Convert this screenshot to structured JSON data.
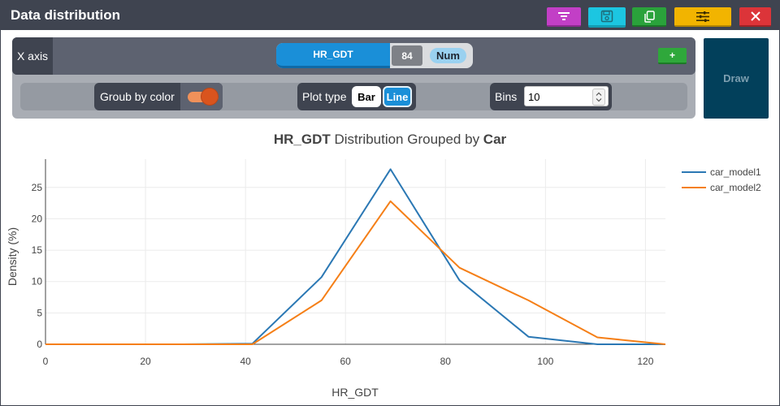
{
  "window": {
    "title": "Data distribution"
  },
  "toolbar": {
    "buttons": [
      {
        "name": "filter-button",
        "icon": "filter-icon",
        "color": "#c23fc6"
      },
      {
        "name": "save-button",
        "icon": "save-icon",
        "color": "#1cc6e1"
      },
      {
        "name": "copy-button",
        "icon": "copy-icon",
        "color": "#2aa23b"
      },
      {
        "name": "settings-button",
        "icon": "sliders-icon",
        "color": "#f2b400"
      },
      {
        "name": "close-button",
        "icon": "close-icon",
        "color": "#dc3439"
      }
    ]
  },
  "controls": {
    "x_axis_label": "X axis",
    "variable": "HR_GDT",
    "count": "84",
    "type_badge": "Num",
    "add_label": "+",
    "group_label": "Groub by color",
    "group_enabled": true,
    "plot_type_label": "Plot type",
    "plot_types": [
      "Bar",
      "Line"
    ],
    "plot_type_selected": "Line",
    "bins_label": "Bins",
    "bins_value": "10",
    "draw_label": "Draw"
  },
  "chart_data": {
    "type": "line",
    "title_var": "HR_GDT",
    "title_mid": " Distribution Grouped by ",
    "title_group": "Car",
    "xlabel": "HR_GDT",
    "ylabel": "Density (%)",
    "xlim": [
      0,
      124
    ],
    "ylim": [
      0,
      29.5
    ],
    "xticks": [
      0,
      20,
      40,
      60,
      80,
      100,
      120
    ],
    "yticks": [
      0,
      5,
      10,
      15,
      20,
      25
    ],
    "grid": true,
    "legend_position": "top-right",
    "series": [
      {
        "name": "car_model1",
        "color": "#2b78b4",
        "x": [
          0,
          13.8,
          27.6,
          41.4,
          55.2,
          69,
          82.8,
          96.6,
          110.4,
          124
        ],
        "y": [
          0,
          0,
          0,
          0.1,
          10.7,
          27.9,
          10.2,
          1.2,
          0,
          0
        ]
      },
      {
        "name": "car_model2",
        "color": "#f57f17",
        "x": [
          0,
          13.8,
          27.6,
          41.4,
          55.2,
          69,
          82.8,
          96.6,
          110.4,
          124
        ],
        "y": [
          0,
          0,
          0,
          0,
          7,
          22.8,
          12.2,
          7,
          1.1,
          0
        ]
      }
    ]
  }
}
